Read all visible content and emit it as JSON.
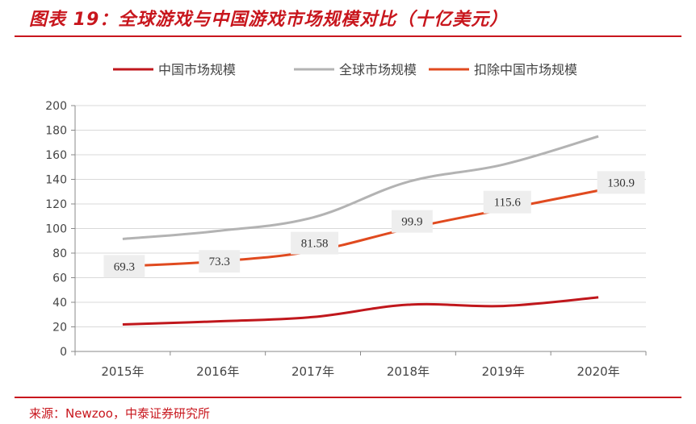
{
  "header": {
    "title": "图表 19：全球游戏与中国游戏市场规模对比（十亿美元）"
  },
  "footer": {
    "source": "来源：Newzoo，中泰证券研究所"
  },
  "colors": {
    "accent": "#c8161d",
    "china": "#c0171c",
    "global": "#b3b3b3",
    "exchina": "#e04a1f",
    "label_bg": "#eeeeee"
  },
  "chart_data": {
    "type": "line",
    "categories": [
      "2015年",
      "2016年",
      "2017年",
      "2018年",
      "2019年",
      "2020年"
    ],
    "series": [
      {
        "name": "中国市场规模",
        "values": [
          22,
          24.5,
          28,
          38,
          37,
          44
        ],
        "color": "#c0171c"
      },
      {
        "name": "全球市场规模",
        "values": [
          91.5,
          98,
          109,
          138,
          152,
          175
        ],
        "color": "#b3b3b3"
      },
      {
        "name": "扣除中国市场规模",
        "values": [
          69.3,
          73.3,
          81.58,
          99.9,
          115.6,
          130.9
        ],
        "color": "#e04a1f",
        "data_labels": [
          "69.3",
          "73.3",
          "81.58",
          "99.9",
          "115.6",
          "130.9"
        ]
      }
    ],
    "ylim": [
      0,
      200
    ],
    "yticks": [
      0,
      20,
      40,
      60,
      80,
      100,
      120,
      140,
      160,
      180,
      200
    ],
    "grid": true,
    "legend_position": "top"
  }
}
